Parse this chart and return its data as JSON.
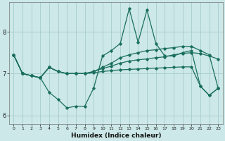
{
  "background_color": "#cce8e8",
  "grid_color": "#a8cccc",
  "line_color": "#1a6e5e",
  "xlabel": "Humidex (Indice chaleur)",
  "xlim": [
    -0.5,
    23.5
  ],
  "ylim": [
    5.8,
    8.7
  ],
  "yticks": [
    6,
    7,
    8
  ],
  "xticks": [
    0,
    1,
    2,
    3,
    4,
    5,
    6,
    7,
    8,
    9,
    10,
    11,
    12,
    13,
    14,
    15,
    16,
    17,
    18,
    19,
    20,
    21,
    22,
    23
  ],
  "series": [
    [
      7.45,
      7.0,
      6.95,
      6.9,
      6.55,
      6.38,
      6.18,
      6.22,
      6.22,
      6.65,
      7.42,
      7.55,
      7.72,
      8.55,
      7.75,
      8.52,
      7.72,
      7.42,
      7.42,
      7.5,
      7.55,
      6.7,
      6.48,
      6.65
    ],
    [
      7.45,
      7.0,
      6.95,
      6.9,
      7.15,
      7.05,
      7.0,
      7.0,
      7.0,
      7.05,
      7.12,
      7.18,
      7.25,
      7.3,
      7.33,
      7.35,
      7.38,
      7.4,
      7.45,
      7.48,
      7.5,
      7.48,
      7.42,
      7.35
    ],
    [
      7.45,
      7.0,
      6.95,
      6.9,
      7.15,
      7.05,
      7.0,
      7.0,
      7.0,
      7.05,
      7.15,
      7.25,
      7.38,
      7.45,
      7.5,
      7.55,
      7.57,
      7.6,
      7.62,
      7.65,
      7.65,
      7.55,
      7.45,
      6.65
    ],
    [
      7.45,
      7.0,
      6.95,
      6.9,
      7.15,
      7.05,
      7.0,
      7.0,
      7.0,
      7.02,
      7.05,
      7.07,
      7.09,
      7.1,
      7.11,
      7.12,
      7.13,
      7.14,
      7.15,
      7.16,
      7.16,
      6.7,
      6.48,
      6.65
    ]
  ]
}
